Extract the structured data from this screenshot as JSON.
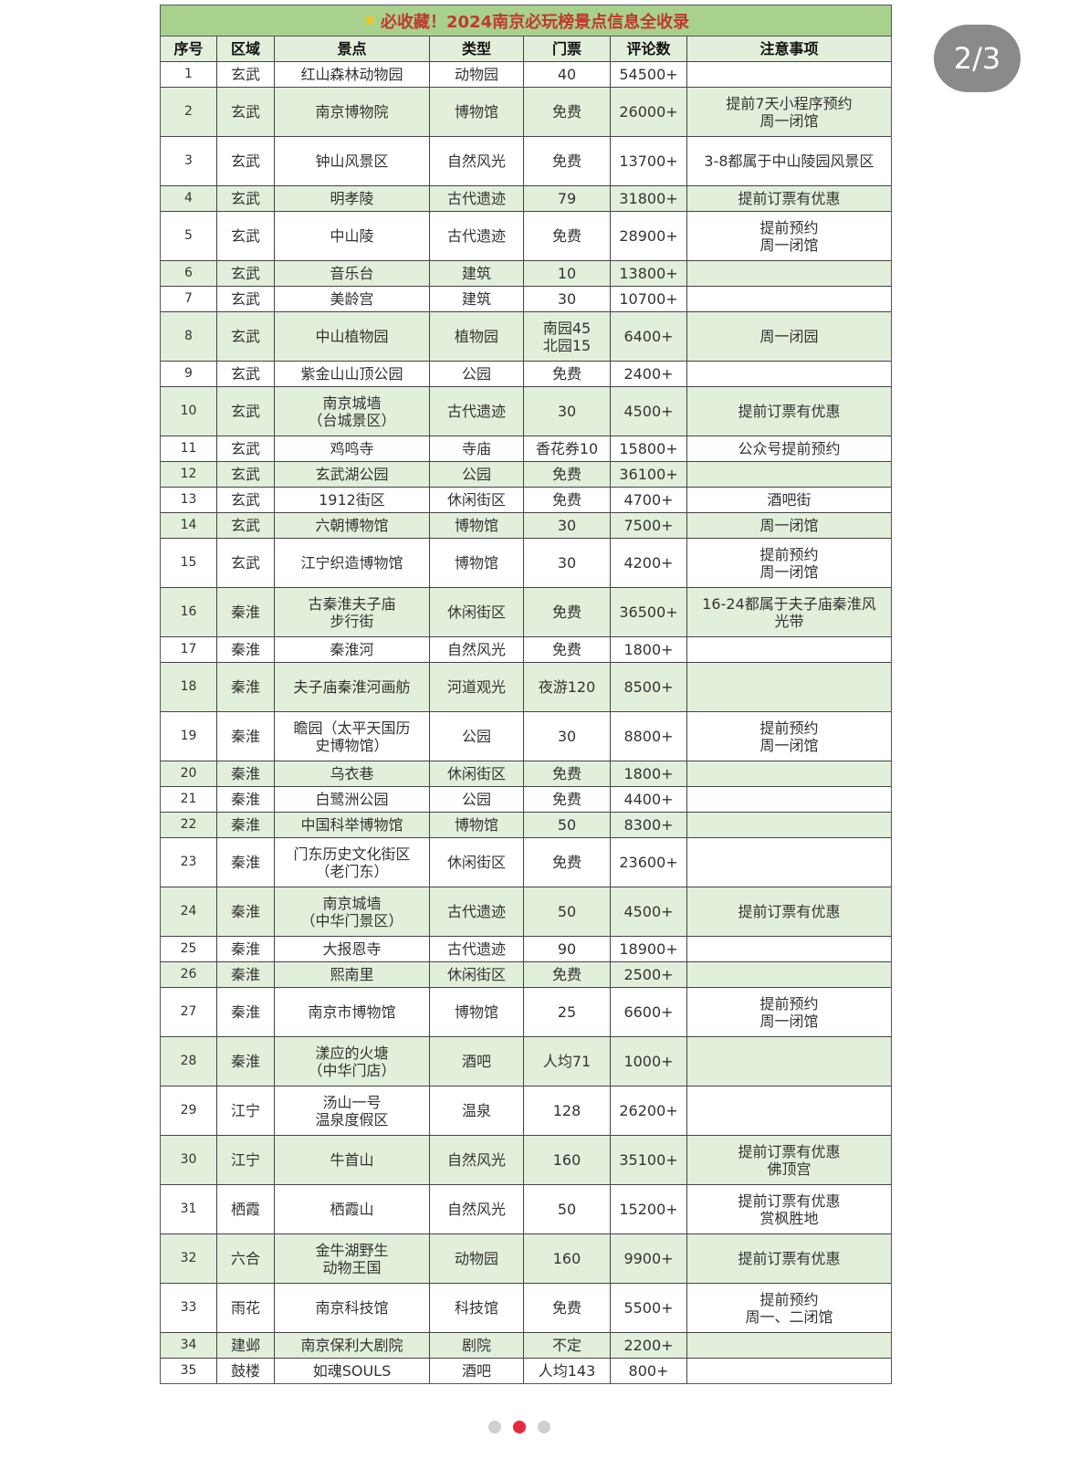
{
  "pager": {
    "label": "2/3"
  },
  "carousel": {
    "count": 3,
    "active_index": 1,
    "active_color": "#e8283c"
  },
  "table": {
    "title_icon": "star-icon",
    "title": "必收藏！2024南京必玩榜景点信息全收录",
    "colors": {
      "title_bg": "#a9d18e",
      "title_text": "#c0392b",
      "stripe": "#e2efda"
    },
    "headers": [
      "序号",
      "区域",
      "景点",
      "类型",
      "门票",
      "评论数",
      "注意事项"
    ],
    "rows": [
      [
        "1",
        "玄武",
        "红山森林动物园",
        "动物园",
        "40",
        "54500+",
        ""
      ],
      [
        "2",
        "玄武",
        "南京博物院",
        "博物馆",
        "免费",
        "26000+",
        "提前7天小程序预约\n周一闭馆"
      ],
      [
        "3",
        "玄武",
        "钟山风景区",
        "自然风光",
        "免费",
        "13700+",
        "3-8都属于中山陵园风景区"
      ],
      [
        "4",
        "玄武",
        "明孝陵",
        "古代遗迹",
        "79",
        "31800+",
        "提前订票有优惠"
      ],
      [
        "5",
        "玄武",
        "中山陵",
        "古代遗迹",
        "免费",
        "28900+",
        "提前预约\n周一闭馆"
      ],
      [
        "6",
        "玄武",
        "音乐台",
        "建筑",
        "10",
        "13800+",
        ""
      ],
      [
        "7",
        "玄武",
        "美龄宫",
        "建筑",
        "30",
        "10700+",
        ""
      ],
      [
        "8",
        "玄武",
        "中山植物园",
        "植物园",
        "南园45\n北园15",
        "6400+",
        "周一闭园"
      ],
      [
        "9",
        "玄武",
        "紫金山山顶公园",
        "公园",
        "免费",
        "2400+",
        ""
      ],
      [
        "10",
        "玄武",
        "南京城墙\n（台城景区）",
        "古代遗迹",
        "30",
        "4500+",
        "提前订票有优惠"
      ],
      [
        "11",
        "玄武",
        "鸡鸣寺",
        "寺庙",
        "香花券10",
        "15800+",
        "公众号提前预约"
      ],
      [
        "12",
        "玄武",
        "玄武湖公园",
        "公园",
        "免费",
        "36100+",
        ""
      ],
      [
        "13",
        "玄武",
        "1912街区",
        "休闲街区",
        "免费",
        "4700+",
        "酒吧街"
      ],
      [
        "14",
        "玄武",
        "六朝博物馆",
        "博物馆",
        "30",
        "7500+",
        "周一闭馆"
      ],
      [
        "15",
        "玄武",
        "江宁织造博物馆",
        "博物馆",
        "30",
        "4200+",
        "提前预约\n周一闭馆"
      ],
      [
        "16",
        "秦淮",
        "古秦淮夫子庙\n步行街",
        "休闲街区",
        "免费",
        "36500+",
        "16-24都属于夫子庙秦淮风\n光带"
      ],
      [
        "17",
        "秦淮",
        "秦淮河",
        "自然风光",
        "免费",
        "1800+",
        ""
      ],
      [
        "18",
        "秦淮",
        "夫子庙秦淮河画舫",
        "河道观光",
        "夜游120",
        "8500+",
        ""
      ],
      [
        "19",
        "秦淮",
        "瞻园（太平天国历\n史博物馆）",
        "公园",
        "30",
        "8800+",
        "提前预约\n周一闭馆"
      ],
      [
        "20",
        "秦淮",
        "乌衣巷",
        "休闲街区",
        "免费",
        "1800+",
        ""
      ],
      [
        "21",
        "秦淮",
        "白鹭洲公园",
        "公园",
        "免费",
        "4400+",
        ""
      ],
      [
        "22",
        "秦淮",
        "中国科举博物馆",
        "博物馆",
        "50",
        "8300+",
        ""
      ],
      [
        "23",
        "秦淮",
        "门东历史文化街区\n（老门东）",
        "休闲街区",
        "免费",
        "23600+",
        ""
      ],
      [
        "24",
        "秦淮",
        "南京城墙\n（中华门景区）",
        "古代遗迹",
        "50",
        "4500+",
        "提前订票有优惠"
      ],
      [
        "25",
        "秦淮",
        "大报恩寺",
        "古代遗迹",
        "90",
        "18900+",
        ""
      ],
      [
        "26",
        "秦淮",
        "熙南里",
        "休闲街区",
        "免费",
        "2500+",
        ""
      ],
      [
        "27",
        "秦淮",
        "南京市博物馆",
        "博物馆",
        "25",
        "6600+",
        "提前预约\n周一闭馆"
      ],
      [
        "28",
        "秦淮",
        "漾应的火塘\n（中华门店）",
        "酒吧",
        "人均71",
        "1000+",
        ""
      ],
      [
        "29",
        "江宁",
        "汤山一号\n温泉度假区",
        "温泉",
        "128",
        "26200+",
        ""
      ],
      [
        "30",
        "江宁",
        "牛首山",
        "自然风光",
        "160",
        "35100+",
        "提前订票有优惠\n佛顶宫"
      ],
      [
        "31",
        "栖霞",
        "栖霞山",
        "自然风光",
        "50",
        "15200+",
        "提前订票有优惠\n赏枫胜地"
      ],
      [
        "32",
        "六合",
        "金牛湖野生\n动物王国",
        "动物园",
        "160",
        "9900+",
        "提前订票有优惠"
      ],
      [
        "33",
        "雨花",
        "南京科技馆",
        "科技馆",
        "免费",
        "5500+",
        "提前预约\n周一、二闭馆"
      ],
      [
        "34",
        "建邺",
        "南京保利大剧院",
        "剧院",
        "不定",
        "2200+",
        ""
      ],
      [
        "35",
        "鼓楼",
        "如魂SOULS",
        "酒吧",
        "人均143",
        "800+",
        ""
      ]
    ]
  }
}
